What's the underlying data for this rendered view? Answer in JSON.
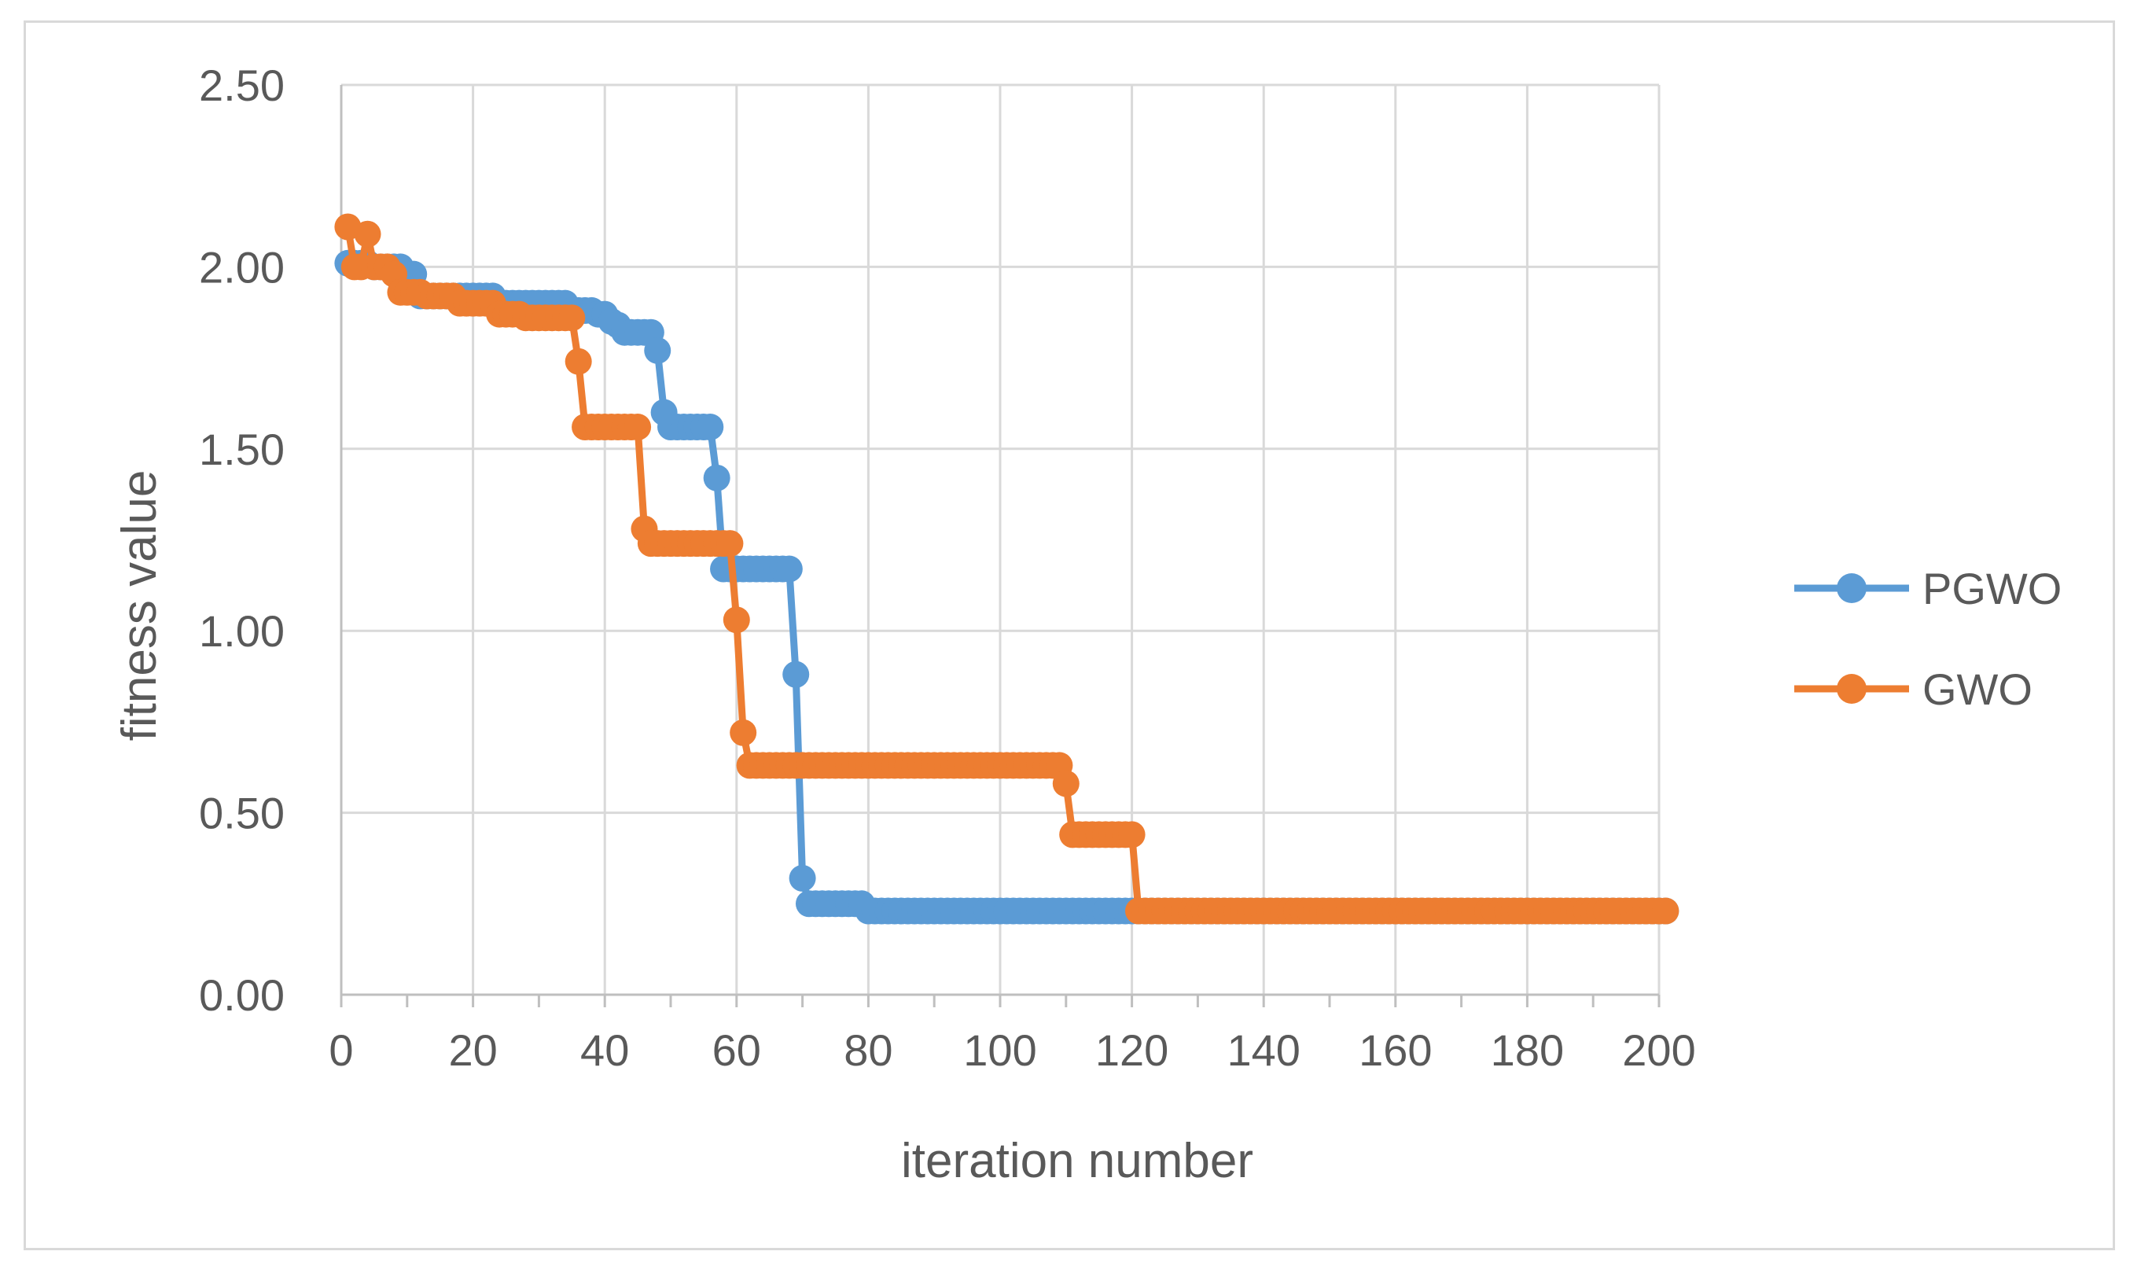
{
  "chart_data": {
    "type": "line",
    "xlabel": "iteration number",
    "ylabel": "fitness value",
    "xlim": [
      0,
      200
    ],
    "ylim": [
      0,
      2.5
    ],
    "xticks": [
      0,
      20,
      40,
      60,
      80,
      100,
      120,
      140,
      160,
      180,
      200
    ],
    "yticks": [
      0,
      0.5,
      1.0,
      1.5,
      2.0,
      2.5
    ],
    "xtick_labels": [
      "0",
      "20",
      "40",
      "60",
      "80",
      "100",
      "120",
      "140",
      "160",
      "180",
      "200"
    ],
    "ytick_labels": [
      "0.00",
      "0.50",
      "1.00",
      "1.50",
      "2.00",
      "2.50"
    ],
    "grid": true,
    "legend_position": "right",
    "series": [
      {
        "name": "PGWO",
        "color": "#5b9bd5",
        "steps": [
          [
            1,
            2.01
          ],
          [
            5,
            2.0
          ],
          [
            10,
            1.98
          ],
          [
            12,
            1.92
          ],
          [
            20,
            1.92
          ],
          [
            24,
            1.9
          ],
          [
            35,
            1.88
          ],
          [
            39,
            1.87
          ],
          [
            41,
            1.85
          ],
          [
            42,
            1.84
          ],
          [
            43,
            1.82
          ],
          [
            48,
            1.77
          ],
          [
            49,
            1.6
          ],
          [
            50,
            1.56
          ],
          [
            57,
            1.42
          ],
          [
            58,
            1.17
          ],
          [
            69,
            0.88
          ],
          [
            70,
            0.32
          ],
          [
            71,
            0.25
          ],
          [
            80,
            0.23
          ],
          [
            201,
            0.23
          ]
        ]
      },
      {
        "name": "GWO",
        "color": "#ed7d31",
        "steps": [
          [
            1,
            2.11
          ],
          [
            2,
            2.0
          ],
          [
            4,
            2.09
          ],
          [
            5,
            2.0
          ],
          [
            8,
            1.98
          ],
          [
            9,
            1.93
          ],
          [
            13,
            1.92
          ],
          [
            18,
            1.9
          ],
          [
            24,
            1.87
          ],
          [
            28,
            1.86
          ],
          [
            36,
            1.74
          ],
          [
            37,
            1.56
          ],
          [
            46,
            1.28
          ],
          [
            47,
            1.24
          ],
          [
            60,
            1.03
          ],
          [
            61,
            0.72
          ],
          [
            62,
            0.63
          ],
          [
            110,
            0.58
          ],
          [
            111,
            0.44
          ],
          [
            121,
            0.23
          ],
          [
            201,
            0.23
          ]
        ]
      }
    ]
  }
}
